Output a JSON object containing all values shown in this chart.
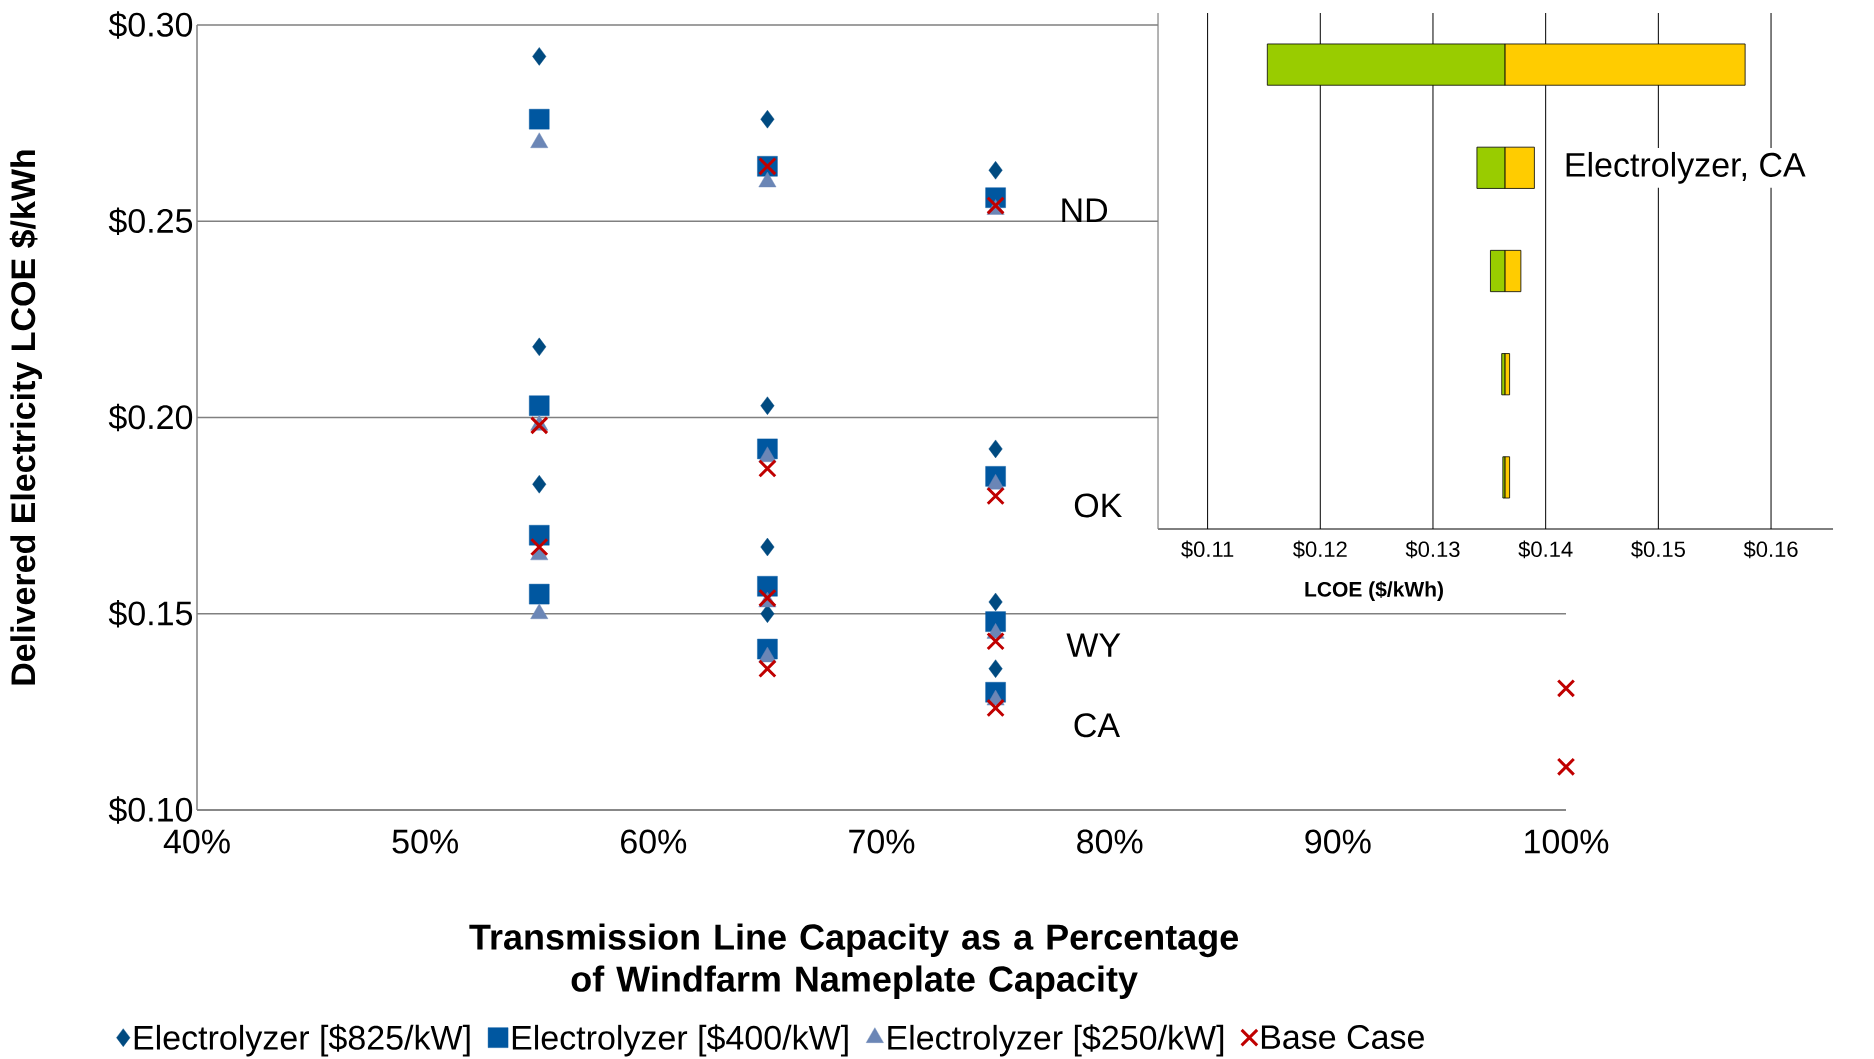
{
  "chart_data": [
    {
      "type": "scatter",
      "xlabel": "Transmission Line Capacity as a Percentage of Windfarm Nameplate Capacity",
      "ylabel": "Delivered Electricity LCOE $/kWh",
      "xlim": [
        40,
        100
      ],
      "ylim": [
        0.1,
        0.3
      ],
      "xticks": [
        {
          "value": 40,
          "label": "40%"
        },
        {
          "value": 50,
          "label": "50%"
        },
        {
          "value": 60,
          "label": "60%"
        },
        {
          "value": 70,
          "label": "70%"
        },
        {
          "value": 80,
          "label": "80%"
        },
        {
          "value": 90,
          "label": "90%"
        },
        {
          "value": 100,
          "label": "100%"
        }
      ],
      "yticks": [
        {
          "value": 0.1,
          "label": "$0.10"
        },
        {
          "value": 0.15,
          "label": "$0.15"
        },
        {
          "value": 0.2,
          "label": "$0.20"
        },
        {
          "value": 0.25,
          "label": "$0.25"
        },
        {
          "value": 0.3,
          "label": "$0.30"
        }
      ],
      "grid": "y",
      "legend": "bottom",
      "annotations": [
        "ND",
        "OK",
        "WY",
        "CA"
      ],
      "series": [
        {
          "name": "Electrolyzer [$825/kW]",
          "color": "#004a80",
          "marker": "diamond",
          "x": [
            55,
            55,
            55,
            65,
            65,
            65,
            65,
            75,
            75,
            75,
            75
          ],
          "values": [
            0.292,
            0.218,
            0.183,
            0.276,
            0.203,
            0.167,
            0.15,
            0.263,
            0.192,
            0.153,
            0.136
          ]
        },
        {
          "name": "Electrolyzer [$400/kW]",
          "color": "#0057a0",
          "marker": "square",
          "x": [
            55,
            55,
            55,
            55,
            65,
            65,
            65,
            65,
            75,
            75,
            75,
            75
          ],
          "values": [
            0.276,
            0.203,
            0.17,
            0.155,
            0.264,
            0.192,
            0.157,
            0.141,
            0.256,
            0.185,
            0.148,
            0.13
          ]
        },
        {
          "name": "Electrolyzer [$250/kW]",
          "color": "#6b86b6",
          "marker": "triangle",
          "x": [
            55,
            55,
            55,
            55,
            65,
            65,
            65,
            65,
            75,
            75,
            75,
            75
          ],
          "values": [
            0.27,
            0.198,
            0.165,
            0.15,
            0.26,
            0.19,
            0.153,
            0.139,
            0.253,
            0.183,
            0.145,
            0.128
          ]
        },
        {
          "name": "Base Case",
          "color": "#c00000",
          "marker": "cross",
          "x": [
            55,
            55,
            65,
            65,
            65,
            65,
            75,
            75,
            75,
            75,
            100,
            100
          ],
          "values": [
            0.198,
            0.167,
            0.264,
            0.187,
            0.154,
            0.136,
            0.254,
            0.18,
            0.143,
            0.126,
            0.131,
            0.111
          ]
        }
      ]
    },
    {
      "type": "bar",
      "orientation": "horizontal",
      "xlabel": "LCOE ($/kWh)",
      "categories": [
        null,
        null,
        null,
        null,
        null
      ],
      "xlim": [
        0.1056,
        0.1655
      ],
      "xticks": [
        {
          "value": 0.11,
          "label": "$0.11"
        },
        {
          "value": 0.12,
          "label": "$0.12"
        },
        {
          "value": 0.13,
          "label": "$0.13"
        },
        {
          "value": 0.14,
          "label": "$0.14"
        },
        {
          "value": 0.15,
          "label": "$0.15"
        },
        {
          "value": 0.16,
          "label": "$0.16"
        }
      ],
      "grid": "x",
      "annotations": [
        "Electrolyzer, CA"
      ],
      "series": [
        {
          "color": "#99cc00",
          "base": [
            0.1153,
            0.1339,
            0.1351,
            0.1361,
            0.1362
          ],
          "values": [
            0.0211,
            0.0025,
            0.0013,
            0.0003,
            0.0002
          ]
        },
        {
          "color": "#ffcc00",
          "base": [
            0.1364,
            0.1364,
            0.1364,
            0.1364,
            0.1364
          ],
          "values": [
            0.0213,
            0.0026,
            0.0014,
            0.0004,
            0.0004
          ]
        }
      ]
    }
  ]
}
